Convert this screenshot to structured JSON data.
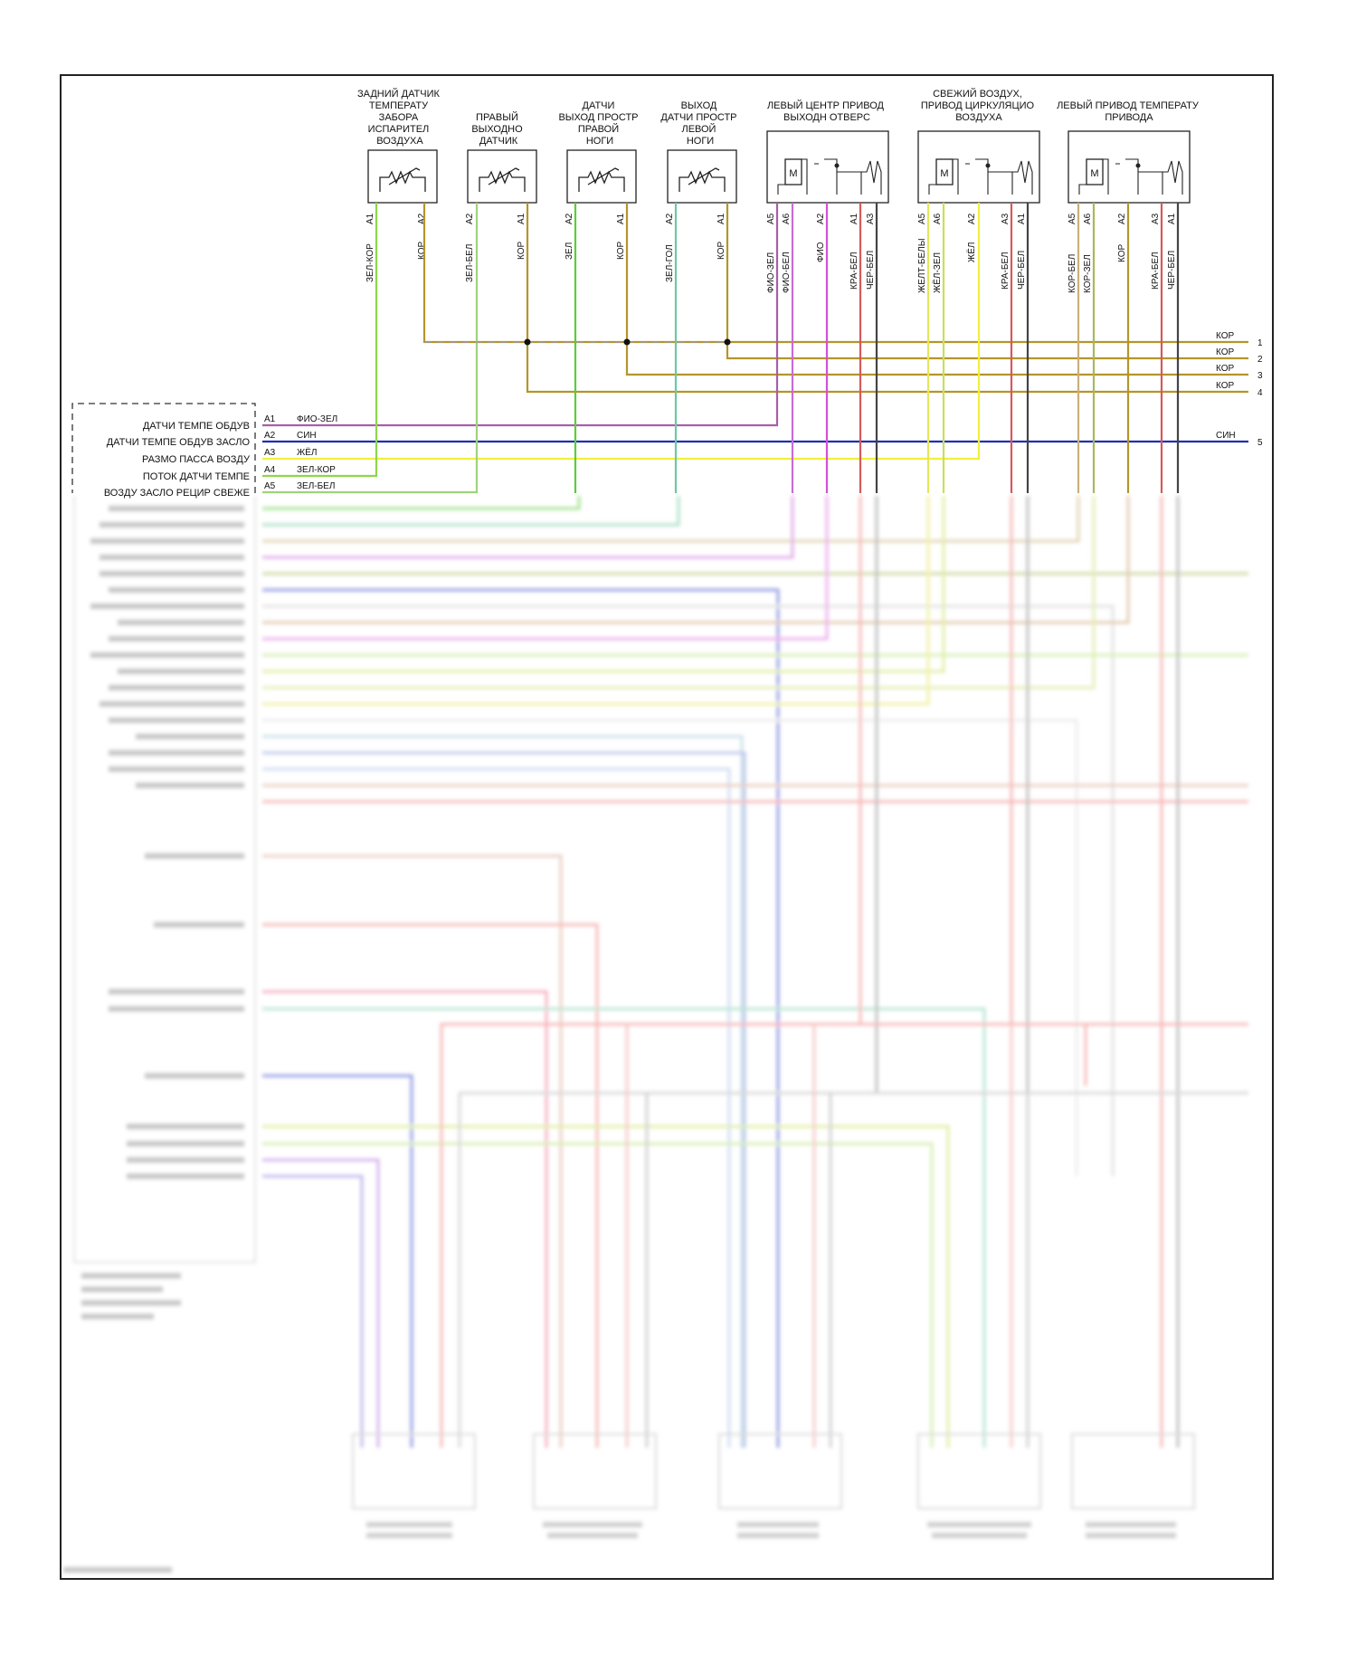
{
  "components": [
    {
      "id": "rear-evap-temp-sensor",
      "title_lines": [
        "ЗАДНИЙ ДАТЧИК",
        "ТЕМПЕРАТУ",
        "ЗАБОРА",
        "ИСПАРИТЕЛ",
        "ВОЗДУХА"
      ],
      "type": "sensor",
      "pins": [
        {
          "pin": "A1",
          "wire": "ЗЕЛ-КОР",
          "color": "#8dd64a"
        },
        {
          "pin": "A2",
          "wire": "КОР",
          "color": "#b5952a"
        }
      ]
    },
    {
      "id": "right-outlet-sensor",
      "title_lines": [
        "ПРАВЫЙ",
        "ВЫХОДНО",
        "ДАТЧИК"
      ],
      "type": "sensor",
      "pins": [
        {
          "pin": "A2",
          "wire": "ЗЕЛ-БЕЛ",
          "color": "#9ed47a"
        },
        {
          "pin": "A1",
          "wire": "КОР",
          "color": "#b5952a"
        }
      ]
    },
    {
      "id": "right-foot-outlet-sensor",
      "title_lines": [
        "ДАТЧИ",
        "ВЫХОД ПРОСТР",
        "ПРАВОЙ",
        "НОГИ"
      ],
      "type": "sensor",
      "pins": [
        {
          "pin": "A2",
          "wire": "ЗЕЛ",
          "color": "#5ccc3a"
        },
        {
          "pin": "A1",
          "wire": "КОР",
          "color": "#b5952a"
        }
      ]
    },
    {
      "id": "left-foot-outlet-sensor",
      "title_lines": [
        "ВЫХОД",
        "ДАТЧИ ПРОСТР",
        "ЛЕВОЙ",
        "НОГИ"
      ],
      "type": "sensor",
      "pins": [
        {
          "pin": "A2",
          "wire": "ЗЕЛ-ГОЛ",
          "color": "#6cc9a0"
        },
        {
          "pin": "A1",
          "wire": "КОР",
          "color": "#b5952a"
        }
      ]
    },
    {
      "id": "left-center-outlet-actuator",
      "title_lines": [
        "ЛЕВЫЙ ЦЕНТР ПРИВОД",
        "ВЫХОДН ОТВЕРС"
      ],
      "type": "actuator",
      "pins": [
        {
          "pin": "A5",
          "wire": "ФИО-ЗЕЛ",
          "color": "#a65fa8"
        },
        {
          "pin": "A6",
          "wire": "ФИО-БЕЛ",
          "color": "#c86cd6"
        },
        {
          "pin": "A2",
          "wire": "ФИО",
          "color": "#d64fd6"
        },
        {
          "pin": "A1",
          "wire": "КРА-БЕЛ",
          "color": "#d65a5a"
        },
        {
          "pin": "A3",
          "wire": "ЧЕР-БЕЛ",
          "color": "#444444"
        }
      ]
    },
    {
      "id": "fresh-recirc-actuator",
      "title_lines": [
        "СВЕЖИЙ ВОЗДУХ,",
        "ПРИВОД ЦИРКУЛЯЦИО",
        "ВОЗДУХА"
      ],
      "type": "actuator",
      "pins": [
        {
          "pin": "A5",
          "wire": "ЖЕЛТ-БЕЛЫ",
          "color": "#e6e65a"
        },
        {
          "pin": "A6",
          "wire": "ЖЁЛ-ЗЕЛ",
          "color": "#c8e05a"
        },
        {
          "pin": "A2",
          "wire": "ЖЁЛ",
          "color": "#f0f03a"
        },
        {
          "pin": "A3",
          "wire": "КРА-БЕЛ",
          "color": "#d65a5a"
        },
        {
          "pin": "A1",
          "wire": "ЧЕР-БЕЛ",
          "color": "#444444"
        }
      ]
    },
    {
      "id": "left-temp-actuator",
      "title_lines": [
        "ЛЕВЫЙ ПРИВОД ТЕМПЕРАТУ",
        "ПРИВОДА"
      ],
      "type": "actuator",
      "pins": [
        {
          "pin": "A5",
          "wire": "КОР-БЕЛ",
          "color": "#c9b07a"
        },
        {
          "pin": "A6",
          "wire": "КОР-ЗЕЛ",
          "color": "#a8b85a"
        },
        {
          "pin": "A2",
          "wire": "КОР",
          "color": "#b5952a"
        },
        {
          "pin": "A3",
          "wire": "КРА-БЕЛ",
          "color": "#d65a5a"
        },
        {
          "pin": "A1",
          "wire": "ЧЕР-БЕЛ",
          "color": "#444444"
        }
      ]
    }
  ],
  "motor_symbol": "M",
  "right_bus": [
    {
      "wire": "КОР",
      "number": "1"
    },
    {
      "wire": "КОР",
      "number": "2"
    },
    {
      "wire": "КОР",
      "number": "3"
    },
    {
      "wire": "КОР",
      "number": "4"
    },
    {
      "wire": "СИН",
      "number": "5"
    }
  ],
  "module_connector": [
    {
      "pin": "A1",
      "signal": "ДАТЧИ ТЕМПЕ ОБДУВ",
      "wire": "ФИО-ЗЕЛ",
      "color": "#a65fa8"
    },
    {
      "pin": "A2",
      "signal": "ДАТЧИ ТЕМПЕ ОБДУВ ЗАСЛО",
      "wire": "СИН",
      "color": "#1f2fb0"
    },
    {
      "pin": "A3",
      "signal": "РАЗМО ПАССА ВОЗДУ",
      "wire": "ЖЁЛ",
      "color": "#f0f03a"
    },
    {
      "pin": "A4",
      "signal": "ПОТОК ДАТЧИ ТЕМПЕ",
      "wire": "ЗЕЛ-КОР",
      "color": "#8dd64a"
    },
    {
      "pin": "A5",
      "signal": "ВОЗДУ ЗАСЛО РЕЦИР СВЕЖЕ",
      "wire": "ЗЕЛ-БЕЛ",
      "color": "#9ed47a"
    }
  ],
  "colors": {
    "frame": "#222222",
    "brown": "#b5952a",
    "blue": "#1f2fb0",
    "yellow": "#f0f03a",
    "green": "#8dd64a",
    "dashed_connector": "#999999"
  }
}
